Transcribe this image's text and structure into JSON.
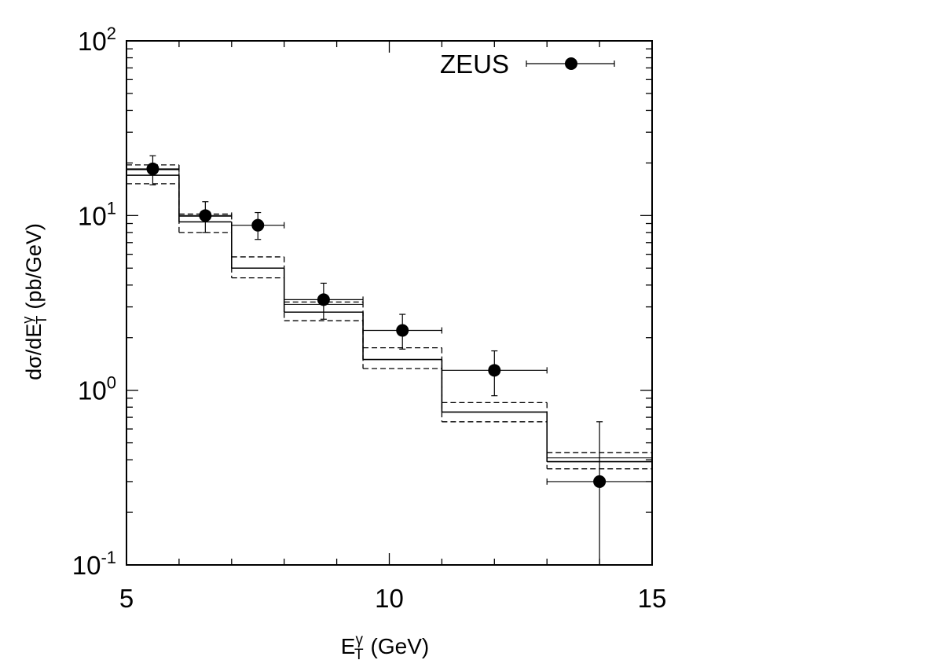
{
  "chart_data": {
    "type": "scatter",
    "xlabel": {
      "base": "E",
      "sup": "γ",
      "sub": "T",
      "unit": "(GeV)"
    },
    "ylabel": {
      "prefix": "dσ/dE",
      "sup": "γ",
      "sub": "T",
      "unit": "(pb/GeV)"
    },
    "xlim": [
      5,
      15
    ],
    "ylim": [
      0.1,
      100
    ],
    "yscale": "log",
    "x_ticks": [
      {
        "value": 5,
        "label": "5"
      },
      {
        "value": 10,
        "label": "10"
      },
      {
        "value": 15,
        "label": "15"
      }
    ],
    "y_ticks": [
      {
        "value": 0.1,
        "base": "10",
        "exp": "-1"
      },
      {
        "value": 1,
        "base": "10",
        "exp": "0"
      },
      {
        "value": 10,
        "base": "10",
        "exp": "1"
      },
      {
        "value": 100,
        "base": "10",
        "exp": "2"
      }
    ],
    "legend": {
      "label": "ZEUS",
      "position": "top-right"
    },
    "data_points": [
      {
        "x": 5.5,
        "y": 18.5,
        "xlo": 5.0,
        "xhi": 6.0,
        "ylo": 15.0,
        "yhi": 22.0
      },
      {
        "x": 6.5,
        "y": 10.0,
        "xlo": 6.0,
        "xhi": 7.0,
        "ylo": 8.0,
        "yhi": 12.0
      },
      {
        "x": 7.5,
        "y": 8.8,
        "xlo": 7.0,
        "xhi": 8.0,
        "ylo": 7.3,
        "yhi": 10.4
      },
      {
        "x": 8.75,
        "y": 3.3,
        "xlo": 8.0,
        "xhi": 9.5,
        "ylo": 2.55,
        "yhi": 4.1
      },
      {
        "x": 10.25,
        "y": 2.2,
        "xlo": 9.5,
        "xhi": 11.0,
        "ylo": 1.72,
        "yhi": 2.72
      },
      {
        "x": 12.0,
        "y": 1.3,
        "xlo": 11.0,
        "xhi": 13.0,
        "ylo": 0.93,
        "yhi": 1.68
      },
      {
        "x": 14.0,
        "y": 0.3,
        "xlo": 13.0,
        "xhi": 15.0,
        "ylo": 0.1,
        "yhi": 0.66
      }
    ],
    "histograms": [
      {
        "style": "solid-center",
        "bins": [
          {
            "x0": 5.0,
            "x1": 6.0,
            "y": 17.0
          },
          {
            "x0": 6.0,
            "x1": 7.0,
            "y": 9.2
          },
          {
            "x0": 7.0,
            "x1": 8.0,
            "y": 5.0
          },
          {
            "x0": 8.0,
            "x1": 9.5,
            "y": 2.8
          },
          {
            "x0": 9.5,
            "x1": 11.0,
            "y": 1.5
          },
          {
            "x0": 11.0,
            "x1": 13.0,
            "y": 0.75
          },
          {
            "x0": 13.0,
            "x1": 15.0,
            "y": 0.39
          }
        ]
      },
      {
        "style": "solid-upper",
        "bins": [
          {
            "x0": 5.0,
            "x1": 6.0,
            "y": 18.3
          },
          {
            "x0": 6.0,
            "x1": 7.0,
            "y": 9.9
          },
          {
            "x0": 8.0,
            "x1": 9.5,
            "y": 3.1
          },
          {
            "x0": 13.0,
            "x1": 15.0,
            "y": 0.41
          }
        ]
      },
      {
        "style": "dashed-upper",
        "bins": [
          {
            "x0": 5.0,
            "x1": 6.0,
            "y": 19.5
          },
          {
            "x0": 6.0,
            "x1": 7.0,
            "y": 10.2
          },
          {
            "x0": 7.0,
            "x1": 8.0,
            "y": 5.8
          },
          {
            "x0": 8.0,
            "x1": 9.5,
            "y": 3.2
          },
          {
            "x0": 9.5,
            "x1": 11.0,
            "y": 1.75
          },
          {
            "x0": 11.0,
            "x1": 13.0,
            "y": 0.85
          },
          {
            "x0": 13.0,
            "x1": 15.0,
            "y": 0.44
          }
        ]
      },
      {
        "style": "dashed-lower",
        "bins": [
          {
            "x0": 5.0,
            "x1": 6.0,
            "y": 15.2
          },
          {
            "x0": 6.0,
            "x1": 7.0,
            "y": 8.0
          },
          {
            "x0": 7.0,
            "x1": 8.0,
            "y": 4.4
          },
          {
            "x0": 8.0,
            "x1": 9.5,
            "y": 2.5
          },
          {
            "x0": 9.5,
            "x1": 11.0,
            "y": 1.33
          },
          {
            "x0": 11.0,
            "x1": 13.0,
            "y": 0.66
          },
          {
            "x0": 13.0,
            "x1": 15.0,
            "y": 0.355
          }
        ]
      }
    ]
  }
}
